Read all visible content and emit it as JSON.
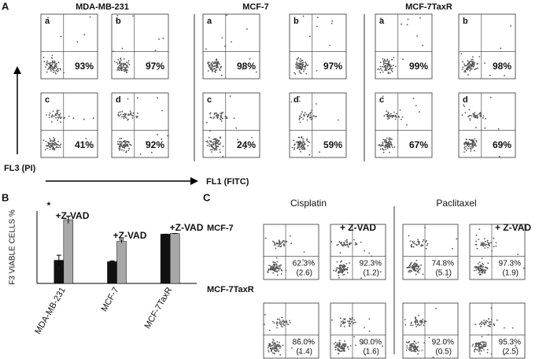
{
  "panel_a": {
    "label": "A",
    "y_axis": "FL3 (PI)",
    "x_axis": "FL1 (FITC)",
    "groups": [
      {
        "title": "MDA-MB-231",
        "plots": [
          {
            "letter": "a",
            "percent": "93%"
          },
          {
            "letter": "b",
            "percent": "97%"
          },
          {
            "letter": "c",
            "percent": "41%"
          },
          {
            "letter": "d",
            "percent": "92%"
          }
        ]
      },
      {
        "title": "MCF-7",
        "plots": [
          {
            "letter": "a",
            "percent": "98%"
          },
          {
            "letter": "b",
            "percent": "97%"
          },
          {
            "letter": "c",
            "percent": "24%"
          },
          {
            "letter": "d",
            "percent": "59%"
          }
        ]
      },
      {
        "title": "MCF-7TaxR",
        "plots": [
          {
            "letter": "a",
            "percent": "99%"
          },
          {
            "letter": "b",
            "percent": "98%"
          },
          {
            "letter": "c",
            "percent": "67%"
          },
          {
            "letter": "d",
            "percent": "69%"
          }
        ]
      }
    ]
  },
  "chart_data": {
    "type": "bar",
    "panel_label": "B",
    "y_label": "F3 VIABLE CELLS %",
    "categories": [
      "MDA-MB-231",
      "MCF-7",
      "MCF-7TaxR"
    ],
    "series": [
      {
        "color": "#111111",
        "values": [
          32,
          30,
          68
        ],
        "errors": [
          7,
          1,
          0
        ]
      },
      {
        "color": "#a8a8a8",
        "values": [
          88,
          58,
          69
        ],
        "errors": [
          5,
          2,
          0
        ]
      }
    ],
    "ylim": [
      0,
      100
    ],
    "annotations": [
      "*",
      "+Z-VAD",
      "+Z-VAD",
      "+Z-VAD"
    ]
  },
  "panel_c": {
    "label": "C",
    "columns": [
      "Cisplatin",
      "+ Z-VAD",
      "Paclitaxel",
      "+ Z-VAD"
    ],
    "rows": [
      {
        "name": "MCF-7",
        "plots": [
          {
            "percent": "62.3%",
            "sd": "(2.6)"
          },
          {
            "percent": "92.3%",
            "sd": "(1.2)"
          },
          {
            "percent": "74.8%",
            "sd": "(5.1)"
          },
          {
            "percent": "97.3%",
            "sd": "(1.9)"
          }
        ]
      },
      {
        "name": "MCF-7TaxR",
        "plots": [
          {
            "percent": "86.0%",
            "sd": "(1.4)"
          },
          {
            "percent": "90.0%",
            "sd": "(1.6)"
          },
          {
            "percent": "92.0%",
            "sd": "(0.5)"
          },
          {
            "percent": "95.3%",
            "sd": "(2.5)"
          }
        ]
      }
    ]
  }
}
